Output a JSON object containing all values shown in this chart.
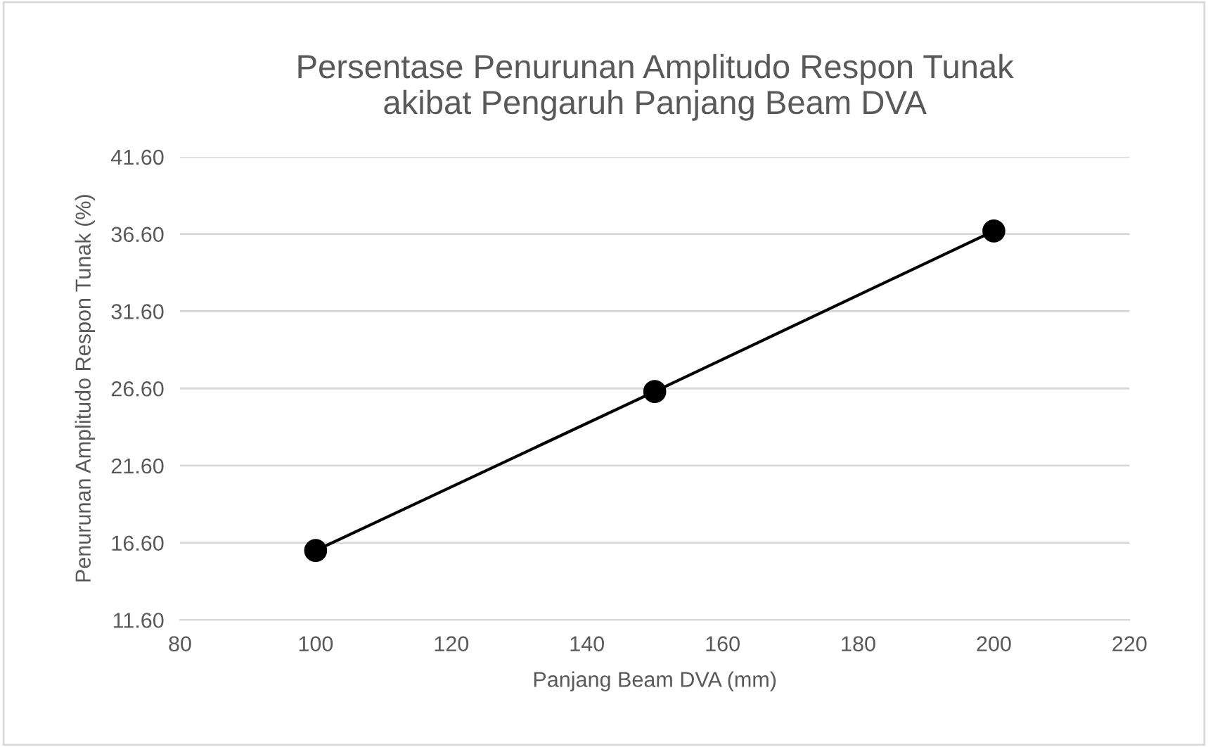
{
  "chart_data": {
    "type": "line",
    "title": "Persentase Penurunan Amplitudo Respon Tunak\nakibat Pengaruh Panjang Beam DVA",
    "xlabel": "Panjang Beam DVA (mm)",
    "ylabel": "Penurunan Amplitudo Respon Tunak (%)",
    "x": [
      100,
      150,
      200
    ],
    "series": [
      {
        "color": "#000000",
        "values": [
          16.1,
          26.4,
          36.8
        ]
      }
    ],
    "xlim": [
      80,
      220
    ],
    "xticks": [
      80,
      100,
      120,
      140,
      160,
      180,
      200,
      220
    ],
    "ylim": [
      11.6,
      41.6
    ],
    "yticks": [
      {
        "value": 11.6,
        "label": "11.60"
      },
      {
        "value": 16.6,
        "label": "16.60"
      },
      {
        "value": 21.6,
        "label": "21.60"
      },
      {
        "value": 26.6,
        "label": "26.60"
      },
      {
        "value": 31.6,
        "label": "31.60"
      },
      {
        "value": 36.6,
        "label": "36.60"
      },
      {
        "value": 41.6,
        "label": "41.60"
      }
    ],
    "grid": "y",
    "marker": "circle",
    "line_style": "solid"
  }
}
